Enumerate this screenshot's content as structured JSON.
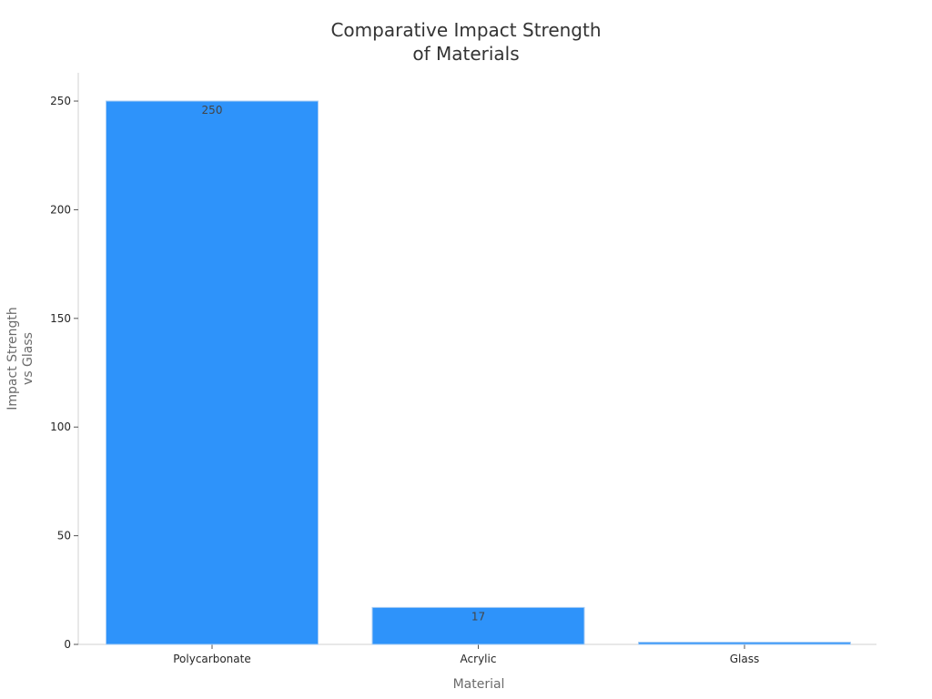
{
  "chart_data": {
    "type": "bar",
    "title_lines": [
      "Comparative Impact Strength",
      "of Materials"
    ],
    "xlabel": "Material",
    "ylabel_lines": [
      "Impact Strength",
      "vs Glass"
    ],
    "categories": [
      "Polycarbonate",
      "Acrylic",
      "Glass"
    ],
    "values": [
      250,
      17,
      1
    ],
    "value_labels": [
      "250",
      "17",
      ""
    ],
    "ylim": [
      0,
      263
    ],
    "yticks": [
      0,
      50,
      100,
      150,
      200,
      250
    ],
    "ytick_labels": [
      "0",
      "50",
      "100",
      "150",
      "200",
      "250"
    ],
    "bar_color": "#2e93fa",
    "grid": false,
    "legend": "none"
  }
}
